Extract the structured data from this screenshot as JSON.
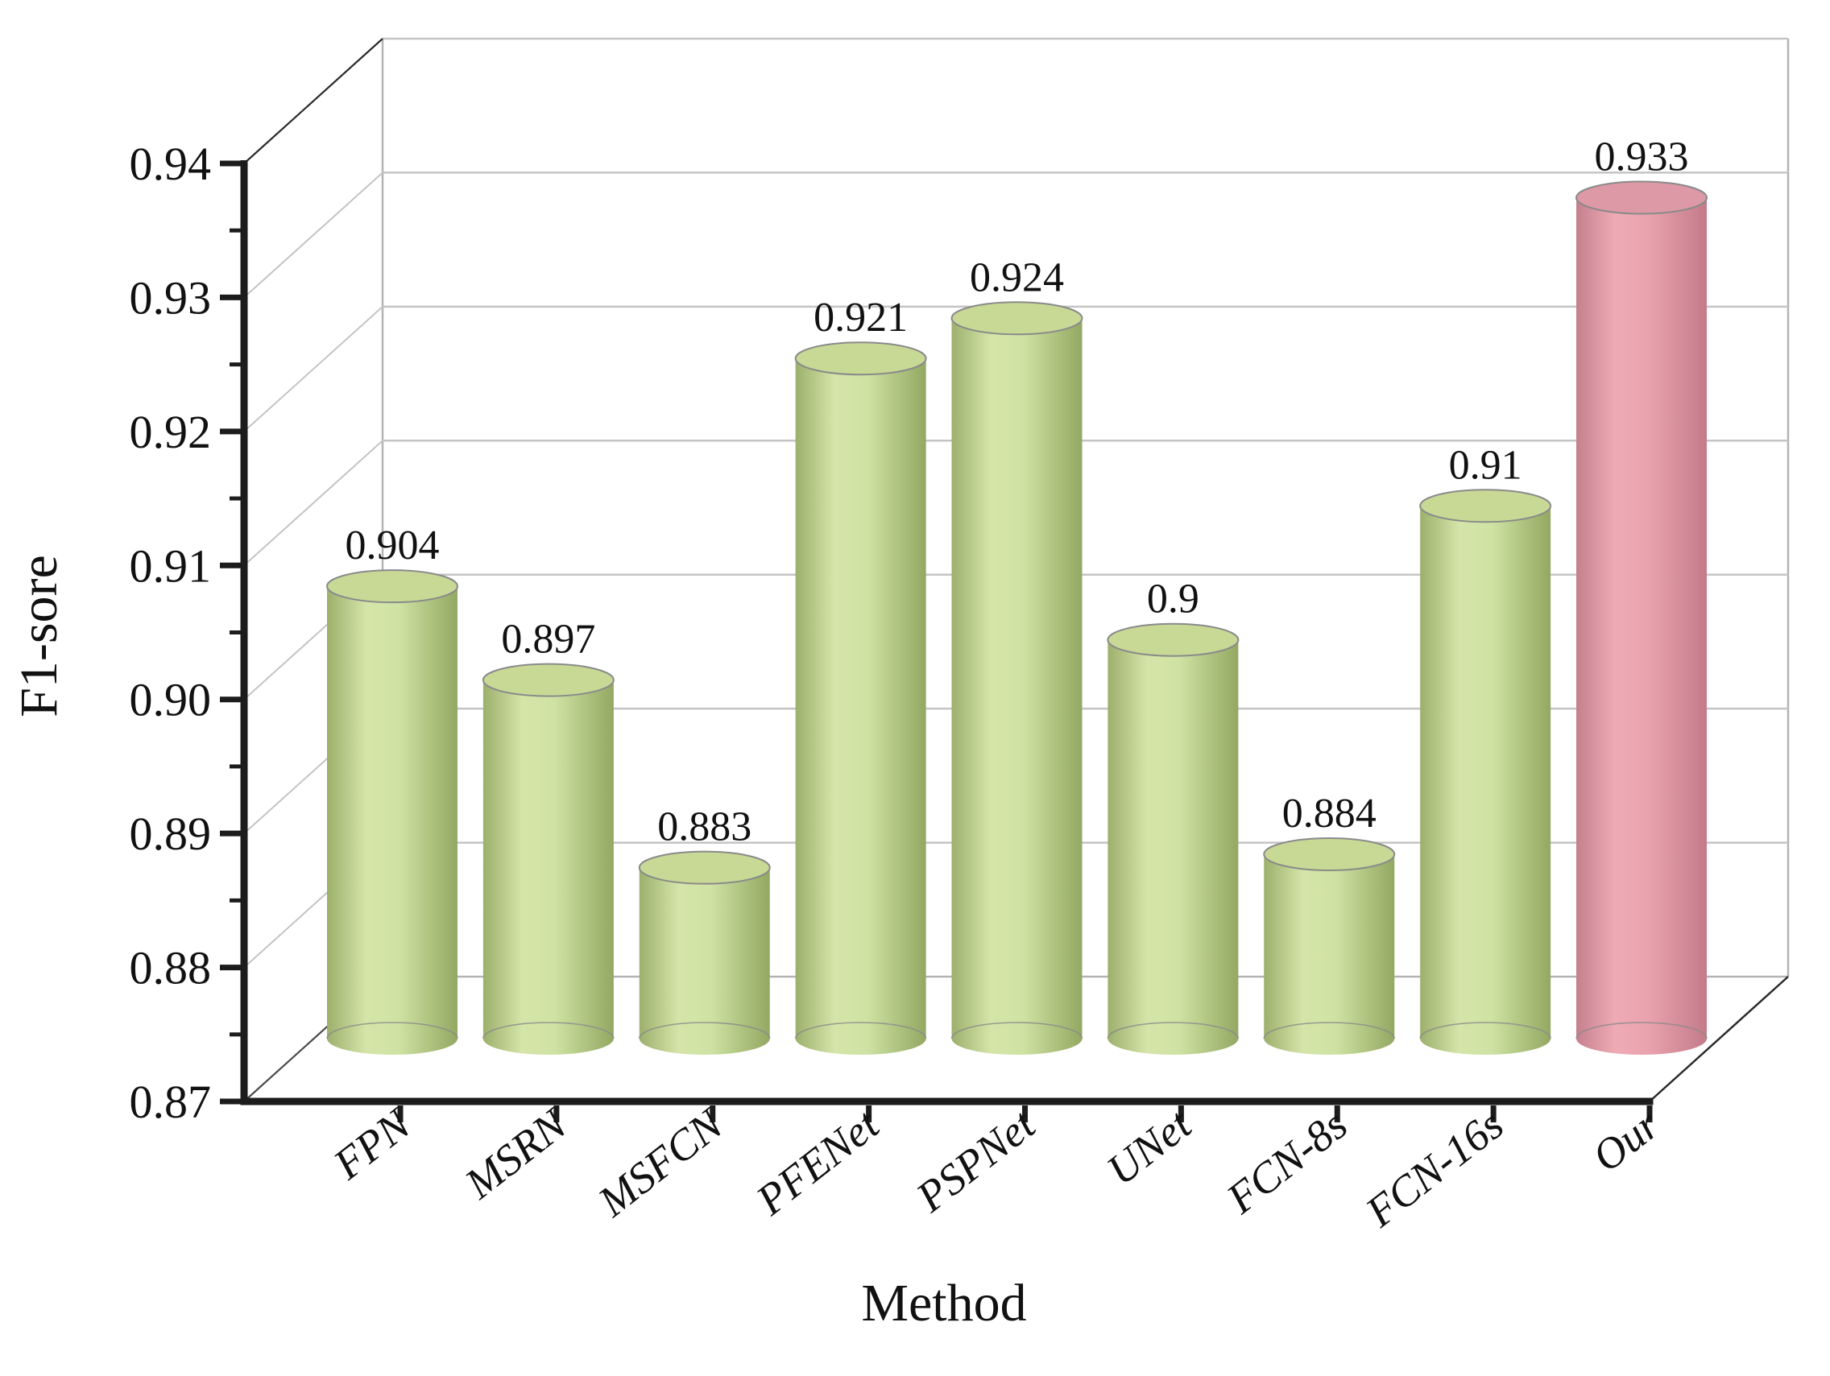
{
  "chart_data": {
    "type": "bar",
    "subtype": "3d-cylinder-column",
    "title": "",
    "xlabel": "Method",
    "ylabel": "F1-sore",
    "categories": [
      "FPN",
      "MSRN",
      "MSFCN",
      "PFENet",
      "PSPNet",
      "UNet",
      "FCN-8s",
      "FCN-16s",
      "Our"
    ],
    "values": [
      0.904,
      0.897,
      0.883,
      0.921,
      0.924,
      0.9,
      0.884,
      0.91,
      0.933
    ],
    "value_labels": [
      "0.904",
      "0.897",
      "0.883",
      "0.921",
      "0.924",
      "0.9",
      "0.884",
      "0.91",
      "0.933"
    ],
    "ylim": [
      0.87,
      0.94
    ],
    "ytick_step": 0.01,
    "ytick_labels": [
      "0.87",
      "0.88",
      "0.89",
      "0.90",
      "0.91",
      "0.92",
      "0.93",
      "0.94"
    ],
    "grid": true,
    "legend": false,
    "highlight_index": 8,
    "series_color_default": "#cfe0a2",
    "series_color_highlight": "#eba6b0"
  },
  "colors": {
    "background": "#ffffff",
    "axis": "#1c1c1c",
    "grid": "#c4c4c4",
    "wall_edge": "#b3b3b3",
    "edge_dark": "#2a2a2a",
    "ellipse_rim": "#8a8a8a",
    "green_body_stops": [
      "#9cb06c",
      "#d5e5a9",
      "#cfe2a3",
      "#93a862"
    ],
    "green_top": "#c7d995",
    "pink_body_stops": [
      "#c5808e",
      "#efabb5",
      "#e9a3ae",
      "#c37b89"
    ],
    "pink_top": "#dd99a6",
    "text": "#111111"
  }
}
